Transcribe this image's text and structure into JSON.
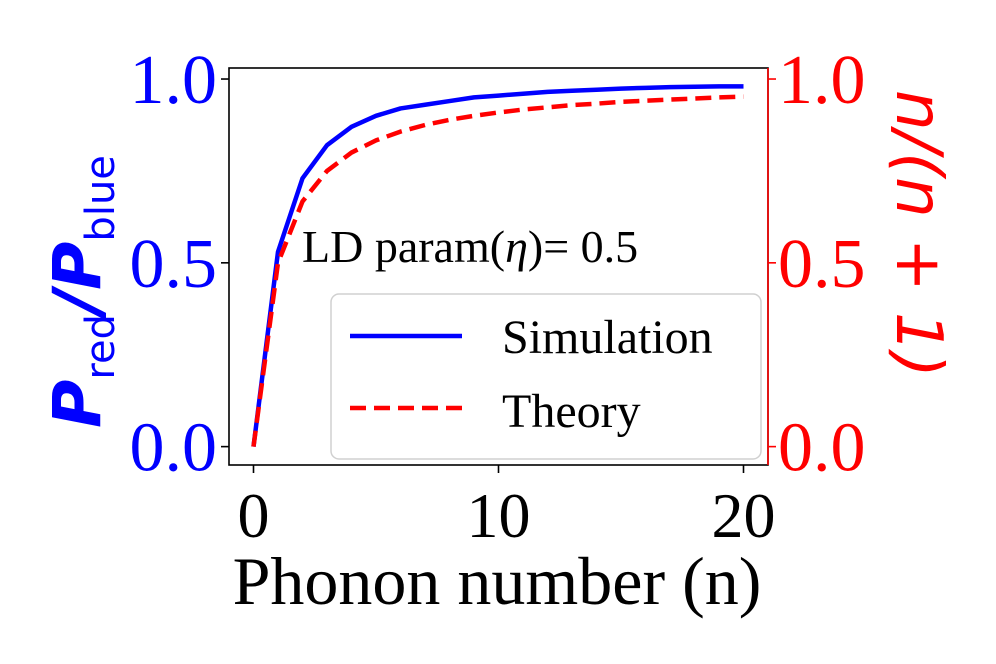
{
  "chart_data": {
    "type": "line",
    "annotation": "LD param(",
    "annotation_eta": "η",
    "annotation_tail": ")= 0.5",
    "xlabel": "Phonon number (n)",
    "xlim": [
      -1,
      21
    ],
    "x_ticks": [
      "0",
      "10",
      "20"
    ],
    "x_tick_values": [
      0,
      10,
      20
    ],
    "ylabel_left_main": "P",
    "ylabel_left_sub1": "red",
    "ylabel_left_slash": "/",
    "ylabel_left_sub2": "blue",
    "ylim_left": [
      -0.05,
      1.03
    ],
    "y_ticks_left": [
      "0.0",
      "0.5",
      "1.0"
    ],
    "y_tick_values_left": [
      0.0,
      0.5,
      1.0
    ],
    "ylabel_right": "n/(n + 1)",
    "ylim_right": [
      -0.05,
      1.03
    ],
    "y_ticks_right": [
      "0.0",
      "0.5",
      "1.0"
    ],
    "y_tick_values_right": [
      0.0,
      0.5,
      1.0
    ],
    "legend_position": "lower-right",
    "series": [
      {
        "name": "Simulation",
        "axis": "left",
        "color": "#0000ff",
        "style": "solid",
        "x": [
          0,
          1,
          2,
          3,
          4,
          5,
          6,
          7,
          8,
          9,
          10,
          11,
          12,
          13,
          14,
          15,
          16,
          17,
          18,
          19,
          20
        ],
        "y": [
          0.0,
          0.53,
          0.73,
          0.82,
          0.87,
          0.9,
          0.92,
          0.93,
          0.94,
          0.95,
          0.955,
          0.96,
          0.965,
          0.968,
          0.971,
          0.974,
          0.976,
          0.978,
          0.979,
          0.98,
          0.98
        ]
      },
      {
        "name": "Theory",
        "axis": "right",
        "color": "#ff0000",
        "style": "dashed",
        "x": [
          0,
          1,
          2,
          3,
          4,
          5,
          6,
          7,
          8,
          9,
          10,
          11,
          12,
          13,
          14,
          15,
          16,
          17,
          18,
          19,
          20
        ],
        "y": [
          0.0,
          0.5,
          0.667,
          0.75,
          0.8,
          0.833,
          0.857,
          0.875,
          0.889,
          0.9,
          0.909,
          0.917,
          0.923,
          0.929,
          0.933,
          0.938,
          0.941,
          0.944,
          0.947,
          0.95,
          0.952
        ]
      }
    ]
  }
}
